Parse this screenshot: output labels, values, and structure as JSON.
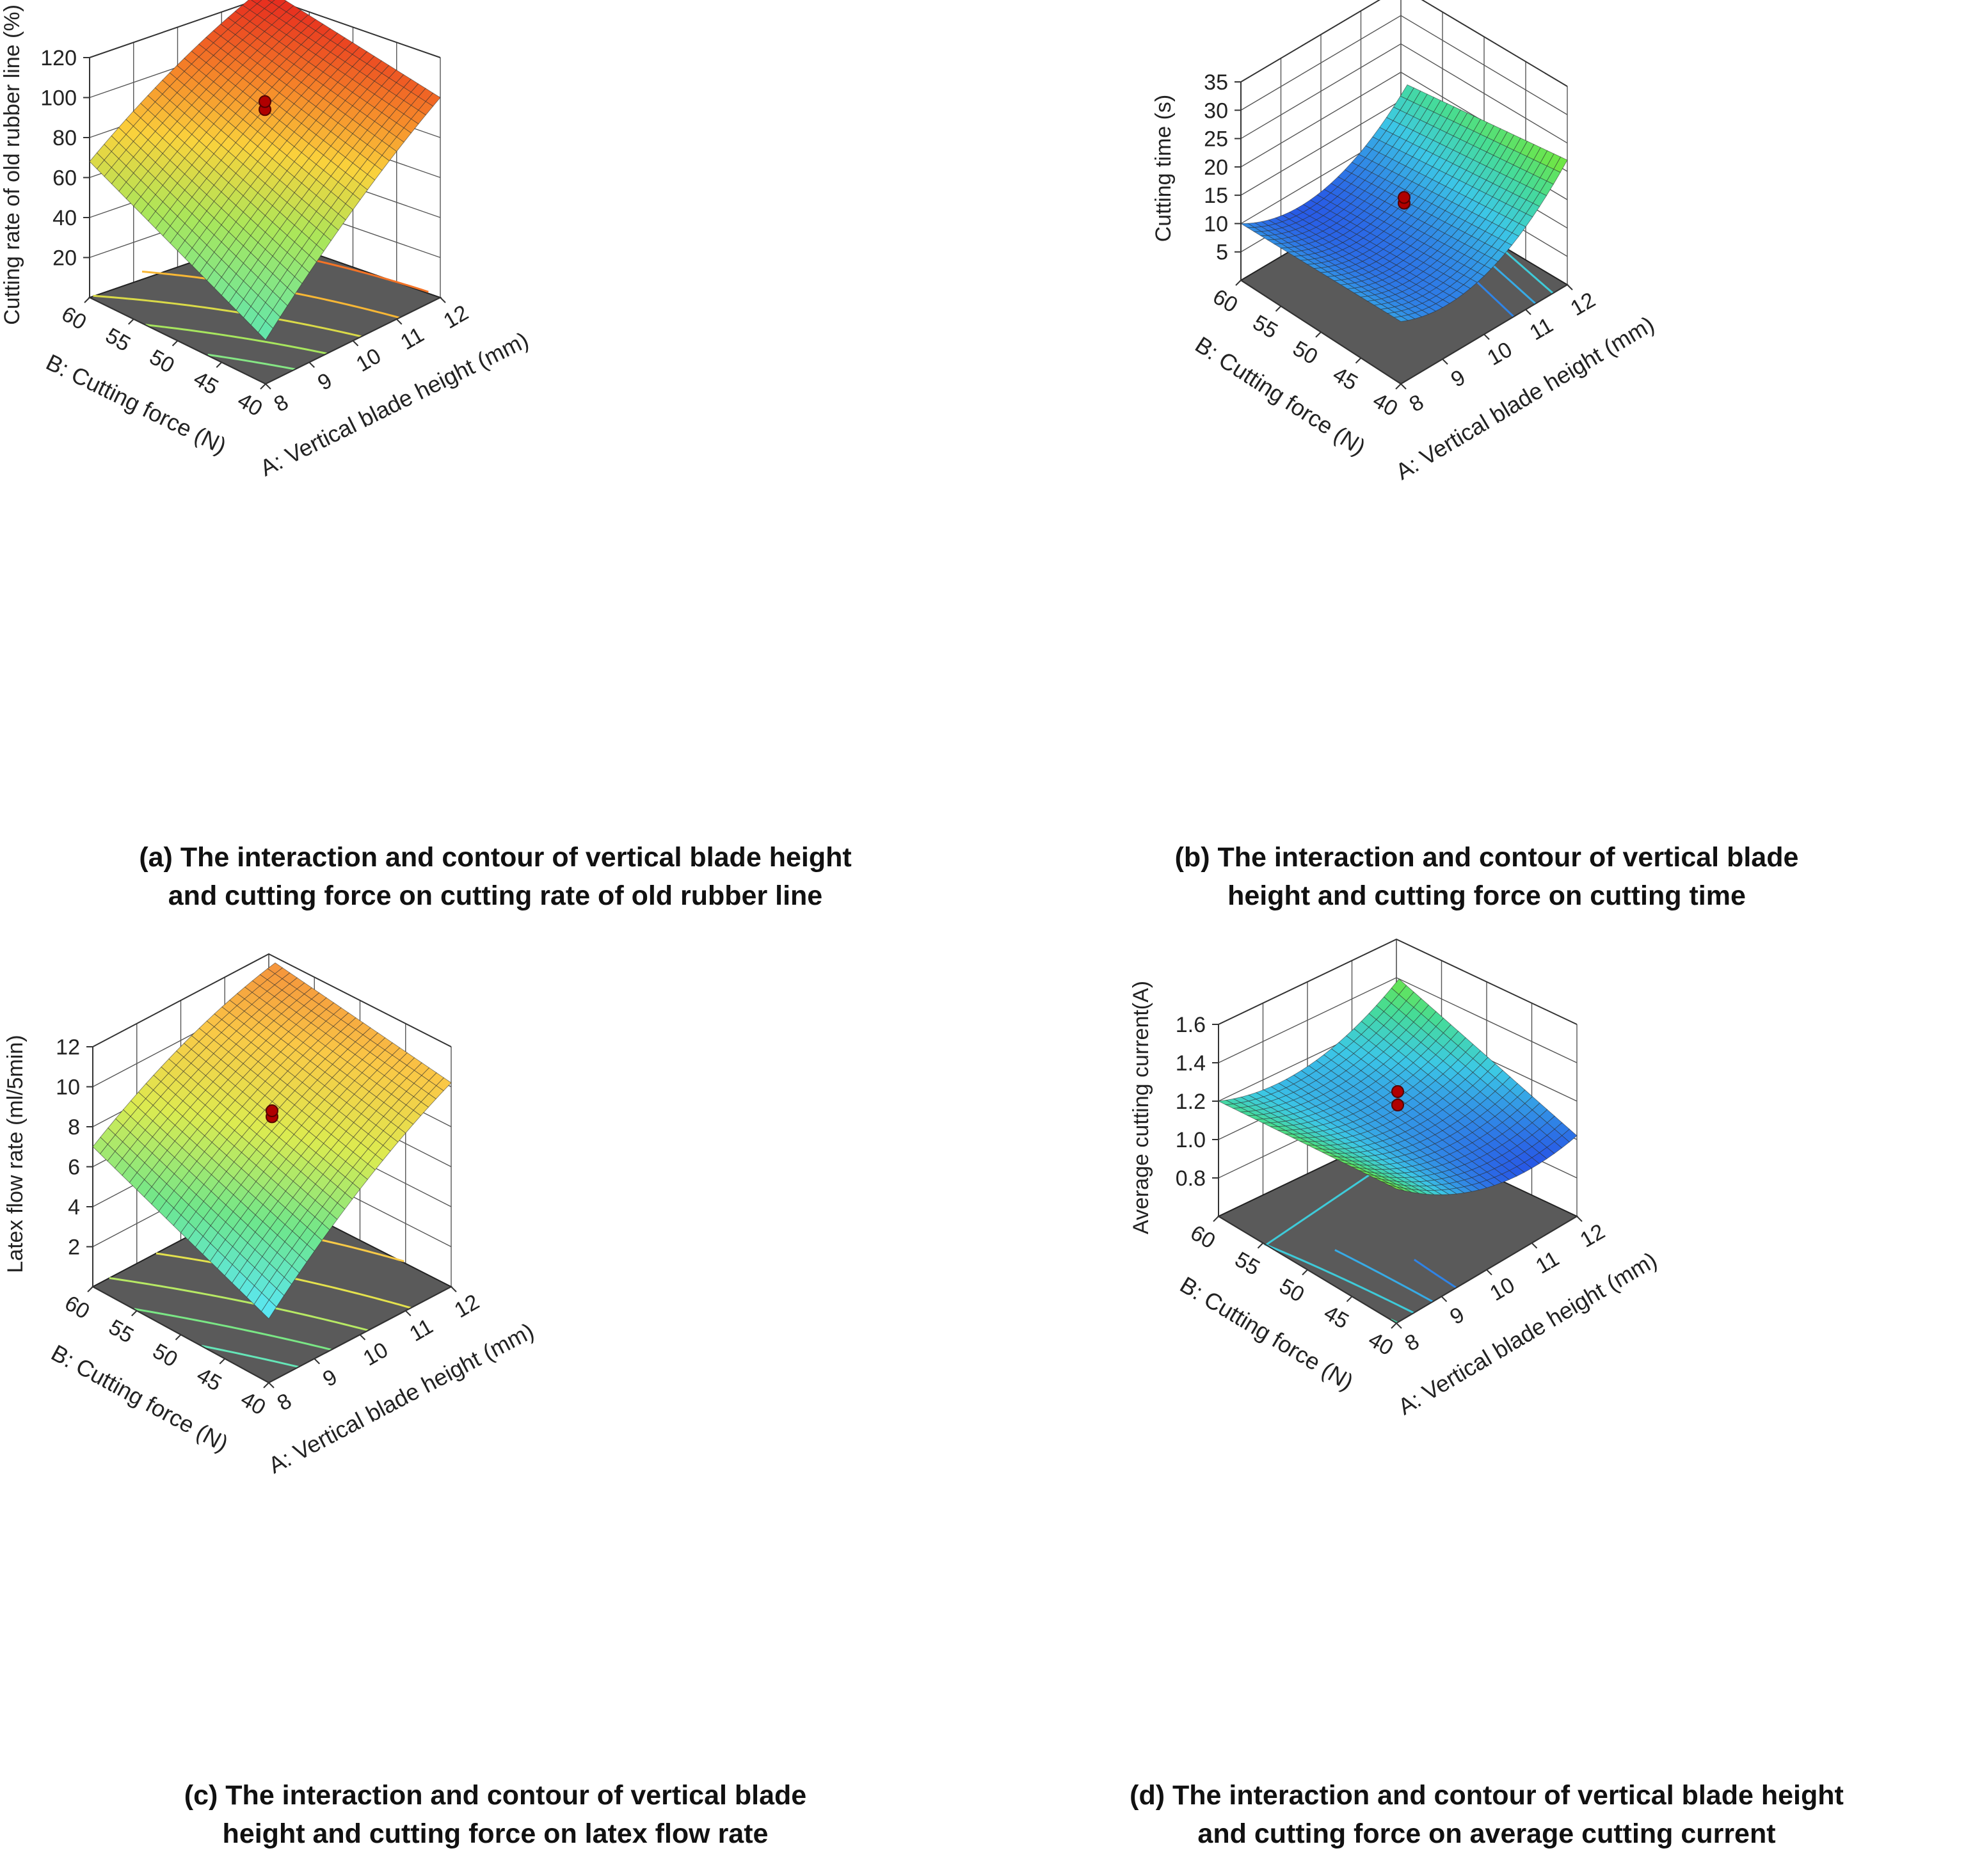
{
  "chart_data": [
    {
      "type": "surface3d",
      "panel_id": "a",
      "caption_lines": [
        "(a) The interaction and contour of vertical blade height",
        "and cutting force on cutting rate of old rubber line"
      ],
      "zlabel": "Cutting rate of old rubber line (%)",
      "xlabel": "A: Vertical blade height (mm)",
      "ylabel": "B: Cutting force (N)",
      "x_ticks": [
        "8",
        "9",
        "10",
        "11",
        "12"
      ],
      "y_ticks": [
        "40",
        "45",
        "50",
        "55",
        "60"
      ],
      "z_ticks": [
        "20",
        "40",
        "60",
        "80",
        "100",
        "120"
      ],
      "zlim": [
        0,
        120
      ],
      "corners": {
        "A8_B40": 22,
        "A12_B40": 100,
        "A8_B60": 68,
        "A12_B60": 112
      },
      "design_points": [
        94,
        98
      ],
      "colormap": "green-yellow-red"
    },
    {
      "type": "surface3d",
      "panel_id": "b",
      "caption_lines": [
        "(b) The interaction and contour of vertical blade",
        "height and cutting force on cutting time"
      ],
      "zlabel": "Cutting time (s)",
      "xlabel": "A: Vertical blade height (mm)",
      "ylabel": "B: Cutting force (N)",
      "x_ticks": [
        "8",
        "9",
        "10",
        "11",
        "12"
      ],
      "y_ticks": [
        "40",
        "45",
        "50",
        "55",
        "60"
      ],
      "z_ticks": [
        "5",
        "10",
        "15",
        "20",
        "25",
        "30",
        "35"
      ],
      "zlim": [
        0,
        35
      ],
      "corners": {
        "A8_B40": 11,
        "A12_B40": 22,
        "A8_B60": 10,
        "A12_B60": 17
      },
      "design_points": [
        14,
        15
      ],
      "colormap": "blue-cyan-green"
    },
    {
      "type": "surface3d",
      "panel_id": "c",
      "caption_lines": [
        "(c) The interaction and contour of vertical blade",
        "height and cutting force on latex flow rate"
      ],
      "zlabel": "Latex flow rate (ml/5min)",
      "xlabel": "A: Vertical blade height (mm)",
      "ylabel": "B: Cutting force (N)",
      "x_ticks": [
        "8",
        "9",
        "10",
        "11",
        "12"
      ],
      "y_ticks": [
        "40",
        "45",
        "50",
        "55",
        "60"
      ],
      "z_ticks": [
        "2",
        "4",
        "6",
        "8",
        "10",
        "12"
      ],
      "zlim": [
        0,
        12
      ],
      "corners": {
        "A8_B40": 3.2,
        "A12_B40": 10.2,
        "A8_B60": 7,
        "A12_B60": 11.4
      },
      "design_points": [
        8.5,
        8.8
      ],
      "colormap": "cyan-green-yellow-orange"
    },
    {
      "type": "surface3d",
      "panel_id": "d",
      "caption_lines": [
        "(d) The interaction and contour of vertical blade height",
        "and cutting force on average cutting current"
      ],
      "zlabel": "Average cutting current(A)",
      "xlabel": "A: Vertical blade height (mm)",
      "ylabel": "B: Cutting force (N)",
      "x_ticks": [
        "8",
        "9",
        "10",
        "11",
        "12"
      ],
      "y_ticks": [
        "40",
        "45",
        "50",
        "55",
        "60"
      ],
      "z_ticks": [
        "0.8",
        "1.0",
        "1.2",
        "1.4",
        "1.6"
      ],
      "zlim": [
        0.6,
        1.6
      ],
      "corners": {
        "A8_B40": 1.3,
        "A12_B40": 1.02,
        "A8_B60": 1.2,
        "A12_B60": 1.28
      },
      "design_points": [
        1.18,
        1.25
      ],
      "colormap": "blue-cyan-green"
    }
  ]
}
